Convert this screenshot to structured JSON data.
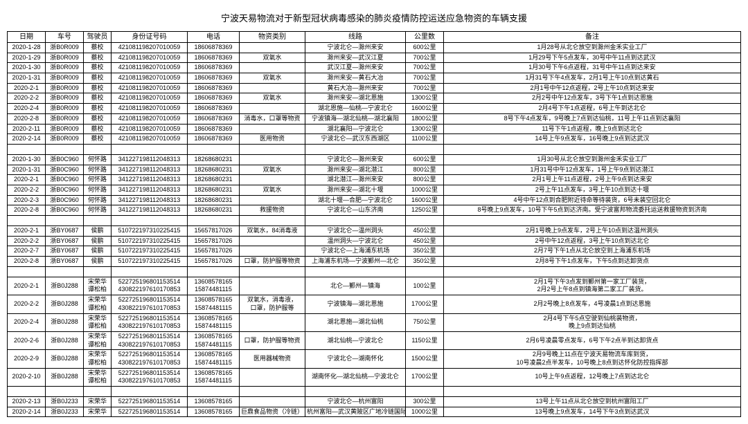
{
  "title": "宁波天易物流对于新型冠状病毒感染的肺炎疫情防控运送应急物资的车辆支援",
  "headers": [
    "日期",
    "车号",
    "驾驶员",
    "身份证号码",
    "电话",
    "物资类别",
    "线路",
    "公里数",
    "备注"
  ],
  "groups": [
    {
      "rows": [
        [
          "2020-1-28",
          "浙B0R009",
          "蔡校",
          "421081198207010059",
          "18606878369",
          "",
          "宁波北仑—滁州来安",
          "600公里",
          "1月28号从北仑放空到滁州金禾实业工厂"
        ],
        [
          "2020-1-29",
          "浙B0R009",
          "蔡校",
          "421081198207010059",
          "18606878369",
          "双氧水",
          "滁州来安—武汉江夏",
          "700公里",
          "1月29号下午5点发车，30号中午11点到达武汉"
        ],
        [
          "2020-1-30",
          "浙B0R009",
          "蔡校",
          "421081198207010059",
          "18606878369",
          "",
          "武汉江夏—滁州来安",
          "700公里",
          "1月30号下午6点返程，31号中午11点到达来安"
        ],
        [
          "2020-1-31",
          "浙B0R009",
          "蔡校",
          "421081198207010059",
          "18606878369",
          "双氧水",
          "滁州来安—黄石大冶",
          "700公里",
          "1月31号下午4点发车，2月1号上午10点到达黄石"
        ],
        [
          "2020-2-1",
          "浙B0R009",
          "蔡校",
          "421081198207010059",
          "18606878369",
          "",
          "黄石大冶—滁州来安",
          "700公里",
          "2月1号中午12点返程，2号上午10点到达来安"
        ],
        [
          "2020-2-2",
          "浙B0R009",
          "蔡校",
          "421081198207010059",
          "18606878369",
          "双氧水",
          "滁州来安—湖北恩施",
          "1300公里",
          "2月2号中午12点发车，3号下午1点到达恩施"
        ],
        [
          "2020-2-4",
          "浙B0R009",
          "蔡校",
          "421081198207010059",
          "18606878369",
          "",
          "湖北恩施—仙桃—宁波北仑",
          "1600公里",
          "2月4号下午1点返程，6号上午到达北仑"
        ],
        [
          "2020-2-8",
          "浙B0R009",
          "蔡校",
          "421081198207010059",
          "18606878369",
          "消毒水，口罩等物资",
          "宁波镇海—湖北仙桃—湖北襄阳",
          "1800公里",
          "8号下午4点发车，9号晚上7点到达仙桃，11号上午11点到达襄阳"
        ],
        [
          "2020-2-11",
          "浙B0R009",
          "蔡校",
          "421081198207010059",
          "18606878369",
          "",
          "湖北襄阳—宁波北仑",
          "1300公里",
          "11号下午1点返程，晚上9点到达北仑"
        ],
        [
          "2020-2-14",
          "浙B0R009",
          "蔡校",
          "421081198207010059",
          "18606878369",
          "医用物资",
          "宁波北仑—武汉东西湖区",
          "1100公里",
          "14号上午9点发车，16号晚上9点到达武汉"
        ]
      ]
    },
    {
      "rows": [
        [
          "2020-1-30",
          "浙B0C960",
          "何怀路",
          "341227198112048313",
          "18268680231",
          "",
          "宁波北仑—滁州来安",
          "600公里",
          "1月30号从北仑放空到滁州金禾实业工厂"
        ],
        [
          "2020-1-31",
          "浙B0C960",
          "何怀路",
          "341227198112048313",
          "18268680231",
          "双氧水",
          "滁州来安—湖北潜江",
          "800公里",
          "1月31号中午12点发车，1号上午9点到达潜江"
        ],
        [
          "2020-2-1",
          "浙B0C960",
          "何怀路",
          "341227198112048313",
          "18268680231",
          "",
          "湖北潜江—滁州来安",
          "800公里",
          "2月1号上午11点返程，2号上午9点到达来安"
        ],
        [
          "2020-2-2",
          "浙B0C960",
          "何怀路",
          "341227198112048313",
          "18268680231",
          "双氧水",
          "滁州来安—湖北十堰",
          "1000公里",
          "2号上午11点发车，3号上午10点到达十堰"
        ],
        [
          "2020-2-3",
          "浙B0C960",
          "何怀路",
          "341227198112048313",
          "18268680231",
          "",
          "湖北十堰—合肥—宁波北仑",
          "1600公里",
          "4号中午12点到合肥附近待命等待装货，6号未装空回北仑"
        ],
        [
          "2020-2-8",
          "浙B0C960",
          "何怀路",
          "341227198112048313",
          "18268680231",
          "救援物资",
          "宁波北仑—山东济南",
          "1250公里",
          "8号晚上9点发车，10号下午5点到达济南。受宁波富邦物流委托运送救援物资到济南"
        ]
      ]
    },
    {
      "rows": [
        [
          "2020-2-1",
          "浙BY0687",
          "侯鹏",
          "510722197310225415",
          "15657817026",
          "双氧水，84消毒液",
          "宁波北仑—温州洞头",
          "450公里",
          "2月1号晚上9点发车，2号上午10点到达温州洞头"
        ],
        [
          "2020-2-2",
          "浙BY0687",
          "侯鹏",
          "510722197310225415",
          "15657817026",
          "",
          "温州洞头—宁波北仑",
          "450公里",
          "2号中午12点返程，3号上午10点到达北仑"
        ],
        [
          "2020-2-7",
          "浙BY0687",
          "侯鹏",
          "510722197310225415",
          "15657817026",
          "",
          "宁波北仑—上海浦东机场",
          "350公里",
          "2月7号下午1点从北仑放空到上海浦东机场"
        ],
        [
          "2020-2-8",
          "浙BY0687",
          "侯鹏",
          "510722197310225415",
          "15657817026",
          "口罩，防护服等物资",
          "上海浦东机场—宁波鄞州—北仑",
          "350公里",
          "2月8号下午1点发车，下午5点到达卸货点"
        ]
      ]
    },
    {
      "rows": [
        [
          "2020-2-1",
          "浙B0J288",
          "宋荣华\n谭松柏",
          "522725196801153514\n430822197610170853",
          "13608578165\n15874481115",
          "",
          "北仑—鄞州—镇海",
          "100公里",
          "2月1号下午3点发到鄞州第一家工厂装货，\n2月2号上午8点到镇海第二家工厂装货。"
        ],
        [
          "2020-2-2",
          "浙B0J288",
          "宋荣华\n谭松柏",
          "522725196801153514\n430822197610170853",
          "13608578165\n15874481115",
          "双氧水，消毒液，\n口罩，防护服等",
          "宁波镇海—湖北恩施",
          "1700公里",
          "2月2号晚上8点发车，4号凌晨1点到达恩施"
        ],
        [
          "2020-2-4",
          "浙B0J288",
          "宋荣华\n谭松柏",
          "522725196801153514\n430822197610170853",
          "13608578165\n15874481115",
          "",
          "湖北恩施—湖北仙桃",
          "750公里",
          "2月4号下午5点空驶到仙桃装物资，\n晚上9点到达仙桃"
        ],
        [
          "2020-2-6",
          "浙B0J288",
          "宋荣华\n谭松柏",
          "522725196801153514\n430822197610170853",
          "13608578165\n15874481115",
          "口罩，防护服等物资",
          "湖北仙桃—宁波北仑",
          "1150公里",
          "2月6号凌晨零点发车，6号下午2点半到达卸货点"
        ],
        [
          "2020-2-9",
          "浙B0J288",
          "宋荣华\n谭松柏",
          "522725196801153514\n430822197610170853",
          "13608578165\n15874481115",
          "医用器械物资",
          "宁波北仑—湖南怀化",
          "1500公里",
          "2月9号晚上11点在宁波天易物流车库到货，\n10号凌晨2点半发车，10号晚上8点到达怀化防控指挥部"
        ],
        [
          "2020-2-10",
          "浙B0J288",
          "宋荣华\n谭松柏",
          "522725196801153514\n430822197610170853",
          "13608578165\n15874481115",
          "",
          "湖南怀化—湖北仙桃—宁波北仑",
          "1700公里",
          "10号上午9点返程，12号晚上7点到达北仑"
        ]
      ]
    },
    {
      "rows": [
        [
          "2020-2-13",
          "浙B0J233",
          "宋荣华",
          "522725196801153514",
          "13608578165",
          "",
          "宁波北仑—杭州富阳",
          "300公里",
          "13号上午11点从北仑放空到杭州富阳工厂"
        ],
        [
          "2020-2-14",
          "浙B0J233",
          "宋荣华",
          "522725196801153514",
          "13608578165",
          "巨鼎食品物资（冷链）",
          "杭州富阳—武汉黄陂区广地冷链国际",
          "1000公里",
          "13号晚上9点发车，14号下午3点到达武汉"
        ]
      ]
    }
  ]
}
